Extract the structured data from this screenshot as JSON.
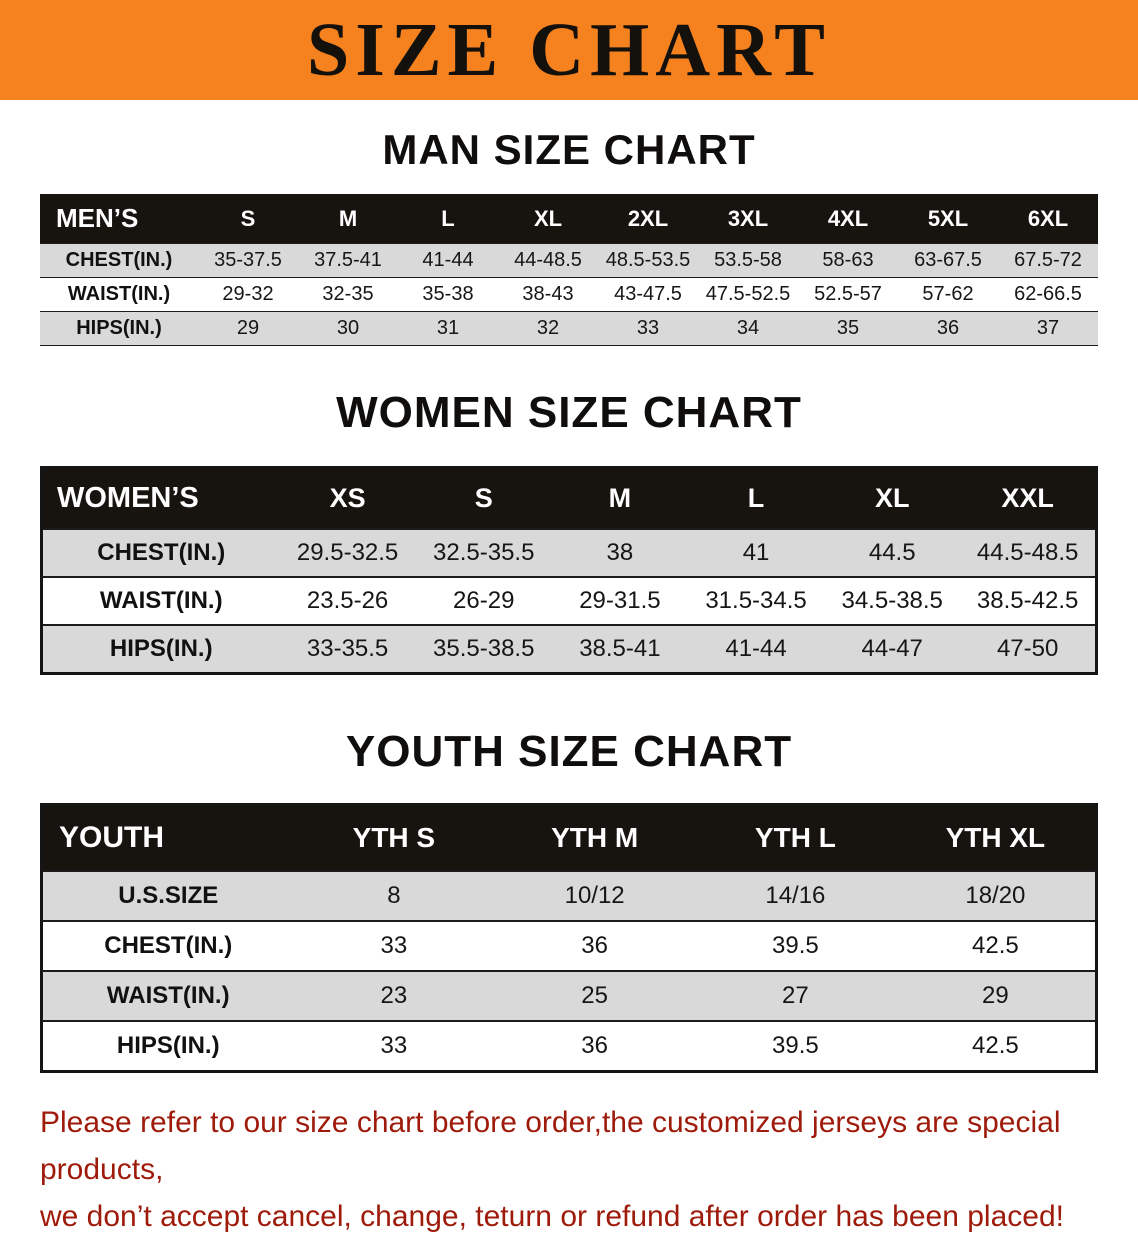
{
  "banner": {
    "title": "SIZE CHART"
  },
  "men": {
    "heading": "MAN SIZE CHART",
    "table": {
      "header": [
        "MEN’S",
        "S",
        "M",
        "L",
        "XL",
        "2XL",
        "3XL",
        "4XL",
        "5XL",
        "6XL"
      ],
      "rows": [
        [
          "CHEST(IN.)",
          "35-37.5",
          "37.5-41",
          "41-44",
          "44-48.5",
          "48.5-53.5",
          "53.5-58",
          "58-63",
          "63-67.5",
          "67.5-72"
        ],
        [
          "WAIST(IN.)",
          "29-32",
          "32-35",
          "35-38",
          "38-43",
          "43-47.5",
          "47.5-52.5",
          "52.5-57",
          "57-62",
          "62-66.5"
        ],
        [
          "HIPS(IN.)",
          "29",
          "30",
          "31",
          "32",
          "33",
          "34",
          "35",
          "36",
          "37"
        ]
      ]
    }
  },
  "women": {
    "heading": "WOMEN SIZE CHART",
    "table": {
      "header": [
        "WOMEN’S",
        "XS",
        "S",
        "M",
        "L",
        "XL",
        "XXL"
      ],
      "rows": [
        [
          "CHEST(IN.)",
          "29.5-32.5",
          "32.5-35.5",
          "38",
          "41",
          "44.5",
          "44.5-48.5"
        ],
        [
          "WAIST(IN.)",
          "23.5-26",
          "26-29",
          "29-31.5",
          "31.5-34.5",
          "34.5-38.5",
          "38.5-42.5"
        ],
        [
          "HIPS(IN.)",
          "33-35.5",
          "35.5-38.5",
          "38.5-41",
          "41-44",
          "44-47",
          "47-50"
        ]
      ]
    }
  },
  "youth": {
    "heading": "YOUTH SIZE CHART",
    "table": {
      "header": [
        "YOUTH",
        "YTH S",
        "YTH M",
        "YTH L",
        "YTH XL"
      ],
      "rows": [
        [
          "U.S.SIZE",
          "8",
          "10/12",
          "14/16",
          "18/20"
        ],
        [
          "CHEST(IN.)",
          "33",
          "36",
          "39.5",
          "42.5"
        ],
        [
          "WAIST(IN.)",
          "23",
          "25",
          "27",
          "29"
        ],
        [
          "HIPS(IN.)",
          "33",
          "36",
          "39.5",
          "42.5"
        ]
      ]
    }
  },
  "disclaimer": {
    "line1": "Please refer to our size chart before order,the customized jerseys are special products,",
    "line2": "we don’t accept cancel, change, teturn or refund after order has been placed!"
  },
  "colors": {
    "banner_orange": "#f5821f",
    "header_black": "#17130f",
    "row_gray": "#d9d9d9",
    "disclaimer_red": "#9e1a0a"
  }
}
